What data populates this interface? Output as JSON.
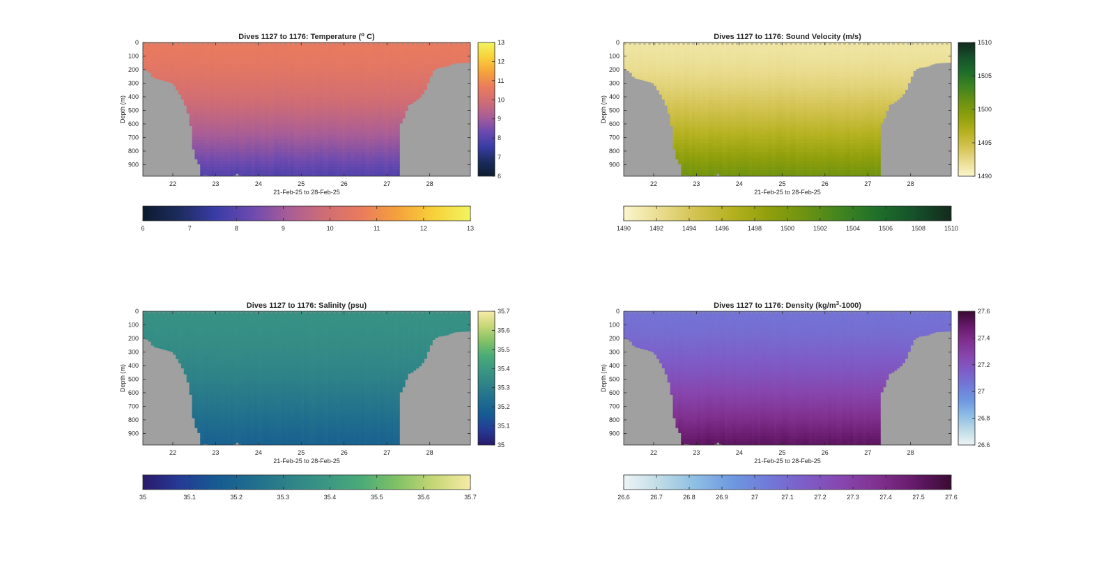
{
  "chart_data": [
    {
      "type": "heatmap",
      "id": "temperature",
      "title": "Dives 1127 to 1176: Temperature (",
      "title_sup": "o",
      "title_end": " C)",
      "xlabel": "21-Feb-25 to 28-Feb-25",
      "ylabel": "Depth (m)",
      "x_ticks": [
        "22",
        "23",
        "24",
        "25",
        "26",
        "27",
        "28"
      ],
      "y_ticks": [
        "0",
        "100",
        "200",
        "300",
        "400",
        "500",
        "600",
        "700",
        "800",
        "900"
      ],
      "xlim": [
        21.3,
        28.95
      ],
      "ylim": [
        0,
        985
      ],
      "colorbar_range": [
        6,
        13
      ],
      "colorbar_right_ticks": [
        "6",
        "7",
        "8",
        "9",
        "10",
        "11",
        "12",
        "13"
      ],
      "colorbar_bottom_ticks": [
        "6",
        "7",
        "8",
        "9",
        "10",
        "11",
        "12",
        "13"
      ],
      "colormap": [
        "#0d1b2e",
        "#1c2c5e",
        "#3a3ca6",
        "#6c4ab0",
        "#a85d97",
        "#d06d74",
        "#ea7b5d",
        "#f5a23c",
        "#f7d13a",
        "#f2f55f"
      ],
      "surface_value": 10.6,
      "deep_value": 8.0
    },
    {
      "type": "heatmap",
      "id": "sound-velocity",
      "title": "Dives 1127 to 1176: Sound Velocity (m/s)",
      "title_sup": "",
      "title_end": "",
      "xlabel": "21-Feb-25 to 28-Feb-25",
      "ylabel": "Depth (m)",
      "x_ticks": [
        "22",
        "23",
        "24",
        "25",
        "26",
        "27",
        "28"
      ],
      "y_ticks": [
        "0",
        "100",
        "200",
        "300",
        "400",
        "500",
        "600",
        "700",
        "800",
        "900"
      ],
      "xlim": [
        21.3,
        28.95
      ],
      "ylim": [
        0,
        985
      ],
      "colorbar_range": [
        1490,
        1510
      ],
      "colorbar_right_ticks": [
        "1490",
        "1495",
        "1500",
        "1505",
        "1510"
      ],
      "colorbar_bottom_ticks": [
        "1490",
        "1492",
        "1494",
        "1496",
        "1498",
        "1500",
        "1502",
        "1504",
        "1506",
        "1508",
        "1510"
      ],
      "colormap": [
        "#fbf6cc",
        "#e9dc8e",
        "#d2c250",
        "#b4b11f",
        "#8f9f0c",
        "#6c9212",
        "#3f8420",
        "#1e6e2a",
        "#15502a",
        "#142a1d"
      ],
      "surface_value": 1491.5,
      "deep_value": 1500.5
    },
    {
      "type": "heatmap",
      "id": "salinity",
      "title": "Dives 1127 to 1176: Salinity (psu)",
      "title_sup": "",
      "title_end": "",
      "xlabel": "21-Feb-25 to 28-Feb-25",
      "ylabel": "Depth (m)",
      "x_ticks": [
        "22",
        "23",
        "24",
        "25",
        "26",
        "27",
        "28"
      ],
      "y_ticks": [
        "0",
        "100",
        "200",
        "300",
        "400",
        "500",
        "600",
        "700",
        "800",
        "900"
      ],
      "xlim": [
        21.3,
        28.95
      ],
      "ylim": [
        0,
        985
      ],
      "colorbar_range": [
        35,
        35.7
      ],
      "colorbar_right_ticks": [
        "35",
        "35.1",
        "35.2",
        "35.3",
        "35.4",
        "35.5",
        "35.6",
        "35.7"
      ],
      "colorbar_bottom_ticks": [
        "35",
        "35.1",
        "35.2",
        "35.3",
        "35.4",
        "35.5",
        "35.6",
        "35.7"
      ],
      "colormap": [
        "#2a1a6b",
        "#253a95",
        "#165a92",
        "#1f6d8e",
        "#2e8288",
        "#3a9683",
        "#4aab78",
        "#82c265",
        "#c7d777",
        "#f6eba6"
      ],
      "surface_value": 35.37,
      "deep_value": 35.19
    },
    {
      "type": "heatmap",
      "id": "density",
      "title": "Dives 1127 to 1176: Density (kg/m",
      "title_sup": "3",
      "title_end": "-1000)",
      "xlabel": "21-Feb-25 to 28-Feb-25",
      "ylabel": "Depth (m)",
      "x_ticks": [
        "22",
        "23",
        "24",
        "25",
        "26",
        "27",
        "28"
      ],
      "y_ticks": [
        "0",
        "100",
        "200",
        "300",
        "400",
        "500",
        "600",
        "700",
        "800",
        "900"
      ],
      "xlim": [
        21.3,
        28.95
      ],
      "ylim": [
        0,
        985
      ],
      "colorbar_range": [
        26.6,
        27.6
      ],
      "colorbar_right_ticks": [
        "26.6",
        "26.8",
        "27",
        "27.2",
        "27.4",
        "27.6"
      ],
      "colorbar_bottom_ticks": [
        "26.6",
        "26.7",
        "26.8",
        "26.9",
        "27",
        "27.1",
        "27.2",
        "27.3",
        "27.4",
        "27.5",
        "27.6"
      ],
      "colormap": [
        "#eef4f6",
        "#bedbe6",
        "#8cbde4",
        "#6e98e0",
        "#7179d8",
        "#7e5cc7",
        "#8746ae",
        "#80308e",
        "#65196a",
        "#3a0b32"
      ],
      "surface_value": 27.07,
      "deep_value": 27.5
    }
  ],
  "bathymetry": {
    "x": [
      21.3,
      21.45,
      21.5,
      21.6,
      21.8,
      22.0,
      22.1,
      22.2,
      22.3,
      22.4,
      22.5,
      22.6,
      22.65,
      22.7,
      22.8,
      23.0,
      23.4,
      23.5,
      23.6,
      24.0,
      24.5,
      25.0,
      25.5,
      26.0,
      26.5,
      27.0,
      27.27,
      27.29,
      27.35,
      27.5,
      27.6,
      27.8,
      27.9,
      28.0,
      28.1,
      28.2,
      28.4,
      28.5,
      28.6,
      28.8,
      28.95
    ],
    "depth": [
      190,
      215,
      245,
      265,
      280,
      300,
      350,
      400,
      470,
      570,
      840,
      880,
      985,
      975,
      978,
      985,
      985,
      965,
      985,
      985,
      985,
      985,
      985,
      985,
      985,
      985,
      985,
      600,
      590,
      460,
      445,
      395,
      345,
      265,
      200,
      185,
      175,
      160,
      152,
      148,
      145
    ]
  }
}
